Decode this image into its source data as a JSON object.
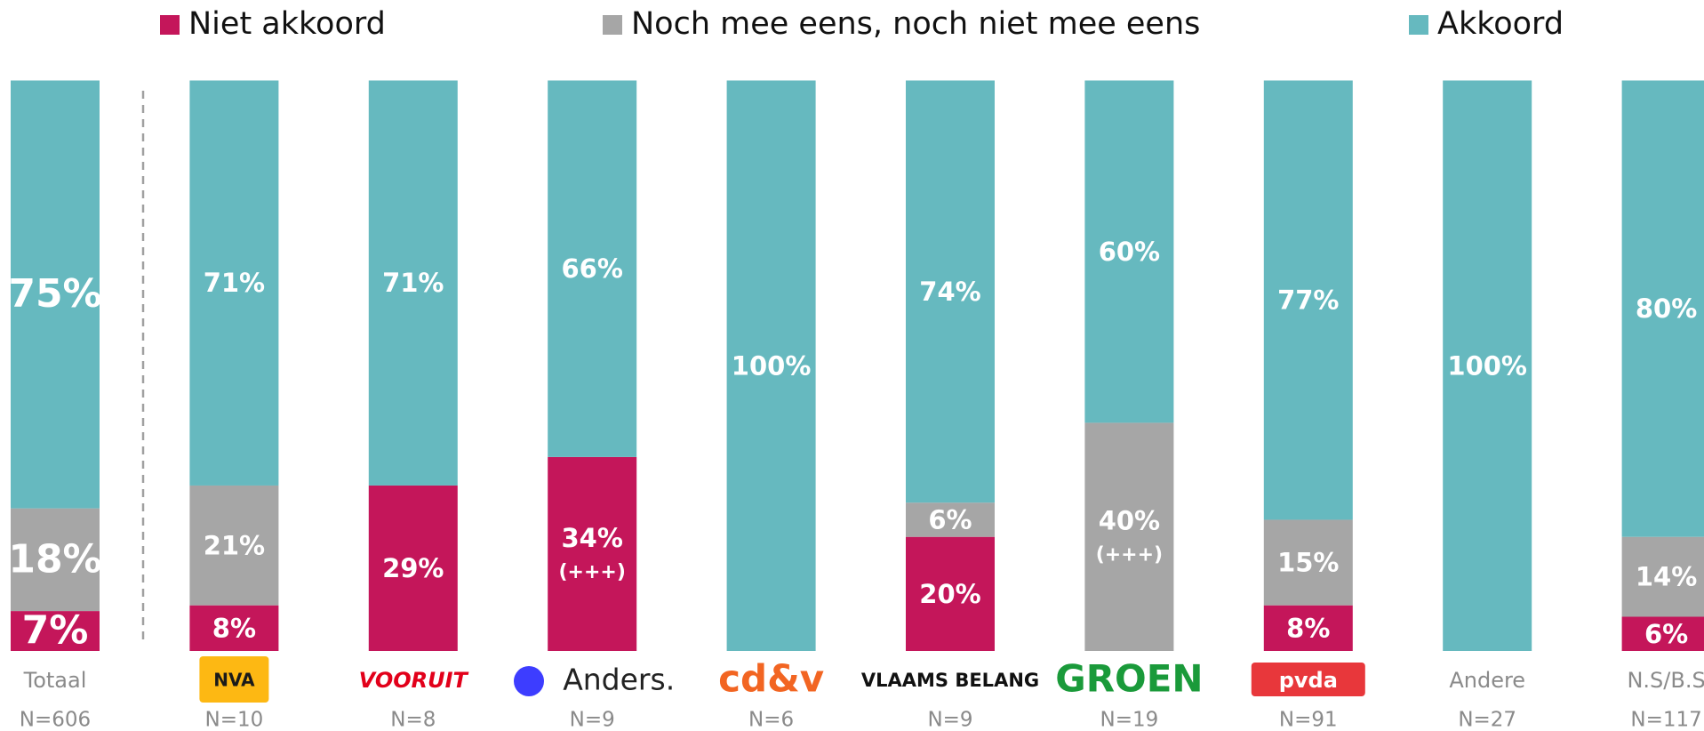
{
  "chart_data": {
    "type": "stacked_bar",
    "categories": [
      "Totaal",
      "NVA",
      "VOORUIT",
      "Anders.",
      "cd&v",
      "VLAAMS BELANG",
      "GROEN",
      "pvda",
      "Andere",
      "N.S/B.S"
    ],
    "n_labels": [
      "N=606",
      "N=10",
      "N=8",
      "N=9",
      "N=6",
      "N=9",
      "N=19",
      "N=91",
      "N=27",
      "N=117"
    ],
    "ylim": [
      0,
      100
    ],
    "series": [
      {
        "name": "Niet akkoord",
        "color": "#c4165a",
        "values": [
          7,
          8,
          29,
          34,
          0,
          20,
          0,
          8,
          0,
          6
        ],
        "value_labels": [
          "7%",
          "8%",
          "29%",
          "34%",
          null,
          "20%",
          null,
          "8%",
          null,
          "6%"
        ],
        "annotations": [
          null,
          null,
          null,
          "(+++)",
          null,
          null,
          null,
          null,
          null,
          null
        ]
      },
      {
        "name": "Noch mee eens, noch niet mee eens",
        "color": "#a6a6a6",
        "values": [
          18,
          21,
          0,
          0,
          0,
          6,
          40,
          15,
          0,
          14
        ],
        "value_labels": [
          "18%",
          "21%",
          null,
          null,
          null,
          "6%",
          "40%",
          "15%",
          null,
          "14%"
        ],
        "annotations": [
          null,
          null,
          null,
          null,
          null,
          null,
          "(+++)",
          null,
          null,
          null
        ]
      },
      {
        "name": "Akkoord",
        "color": "#66b9bf",
        "values": [
          75,
          71,
          71,
          66,
          100,
          74,
          60,
          77,
          100,
          80
        ],
        "value_labels": [
          "75%",
          "71%",
          "71%",
          "66%",
          "100%",
          "74%",
          "60%",
          "77%",
          "100%",
          "80%"
        ],
        "annotations": [
          null,
          null,
          null,
          null,
          null,
          null,
          null,
          null,
          null,
          null
        ]
      }
    ]
  }
}
